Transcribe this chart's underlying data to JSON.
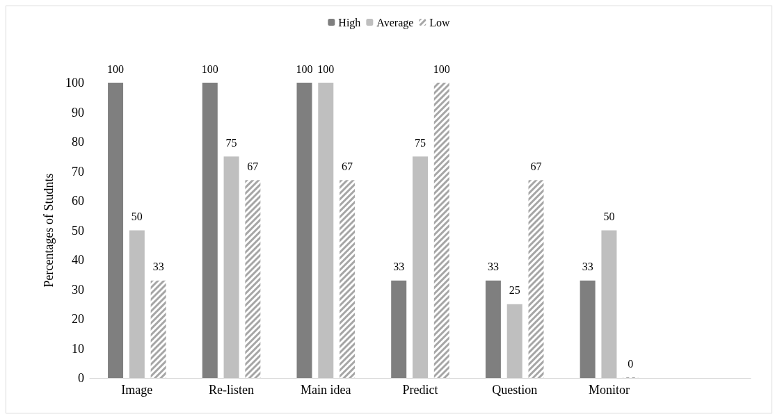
{
  "chart_data": {
    "type": "bar",
    "ylabel": "Percentages of Studnts",
    "categories": [
      "Image",
      "Re-listen",
      "Main idea",
      "Predict",
      "Question",
      "Monitor",
      null
    ],
    "series": [
      {
        "name": "High",
        "color": "#7f7f7f",
        "values": [
          100,
          100,
          100,
          33,
          33,
          33,
          null
        ]
      },
      {
        "name": "Average",
        "color": "#bfbfbf",
        "values": [
          50,
          75,
          100,
          75,
          25,
          50,
          null
        ]
      },
      {
        "name": "Low",
        "color": "#a6a6a6",
        "values": [
          33,
          67,
          67,
          100,
          67,
          0,
          null
        ]
      }
    ],
    "ylim": [
      0,
      100
    ],
    "yticks": [
      0,
      10,
      20,
      30,
      40,
      50,
      60,
      70,
      80,
      90,
      100
    ],
    "data_labels": true,
    "legend": "top",
    "grid": false
  }
}
